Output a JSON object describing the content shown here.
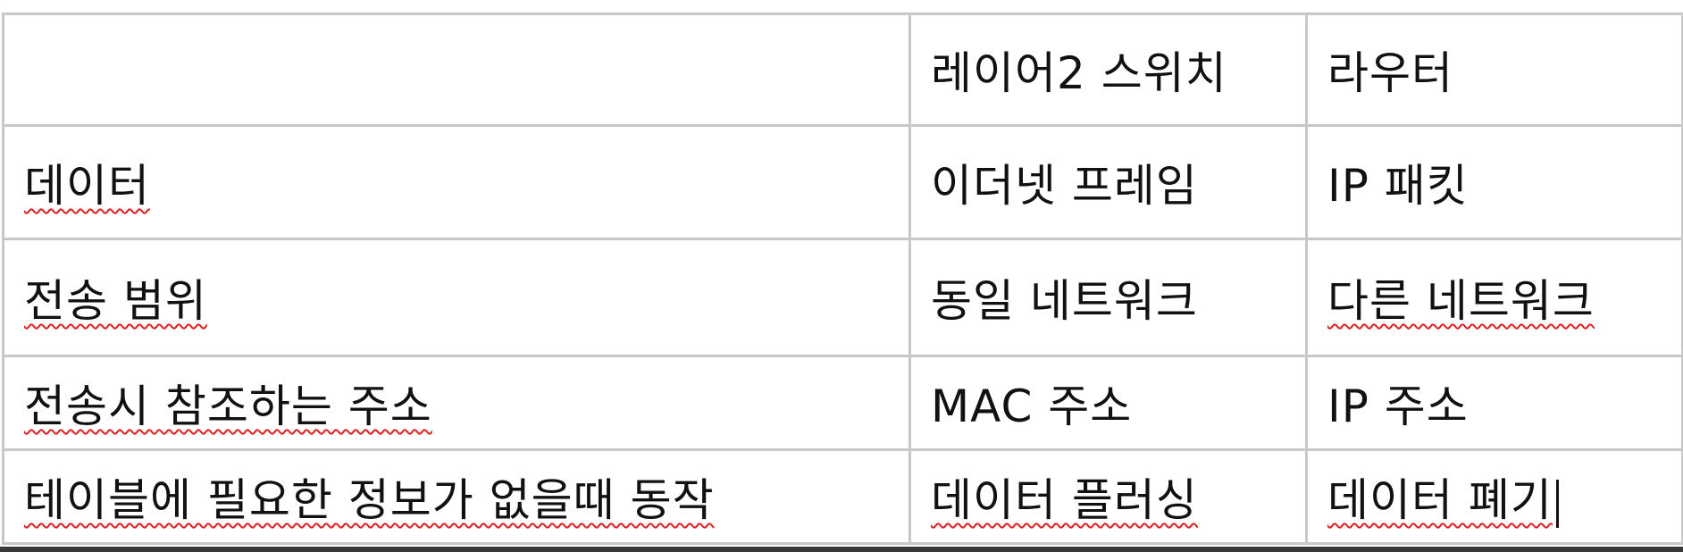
{
  "table": {
    "header": [
      "",
      "레이어2 스위치",
      "라우터"
    ],
    "rows": [
      [
        "데이터",
        "이더넷 프레임",
        "IP 패킷"
      ],
      [
        "전송 범위",
        "동일 네트워크",
        "다른 네트워크"
      ],
      [
        "전송시 참조하는 주소",
        "MAC 주소",
        "IP 주소"
      ],
      [
        "테이블에 필요한 정보가 없을때 동작",
        "데이터 플러싱",
        "데이터 폐기"
      ]
    ]
  },
  "colors": {
    "border": "#c8c8c8",
    "spellcheck_underline": "#e02020",
    "text": "#111111"
  }
}
